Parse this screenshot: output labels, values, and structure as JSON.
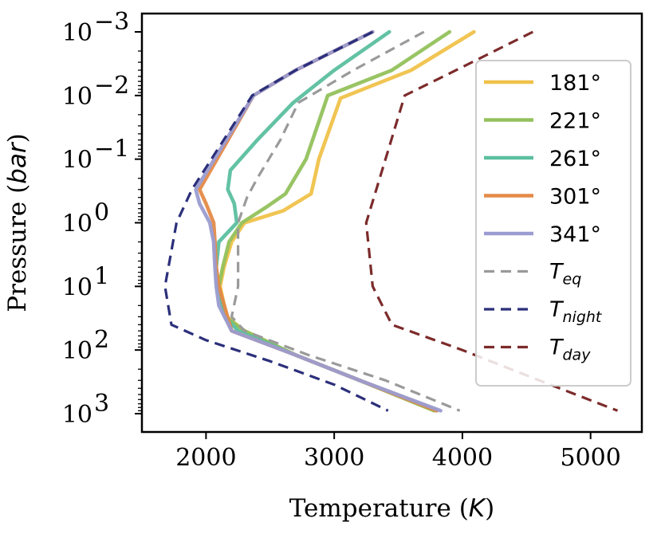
{
  "chart_data": {
    "type": "line",
    "title": "",
    "xlabel": "Temperature",
    "xlabel_unit": "K",
    "ylabel": "Pressure",
    "ylabel_unit": "bar",
    "xlim": [
      1500,
      5400
    ],
    "ylim": [
      0.001,
      1000.0
    ],
    "yscale": "log",
    "y_inverted": true,
    "grid": false,
    "legend_position": "right",
    "x_ticks": [
      {
        "value": 2000,
        "label": "2000"
      },
      {
        "value": 3000,
        "label": "3000"
      },
      {
        "value": 4000,
        "label": "4000"
      },
      {
        "value": 5000,
        "label": "5000"
      }
    ],
    "y_ticks": [
      {
        "value": 0.001,
        "base": "10",
        "exp": "−3"
      },
      {
        "value": 0.01,
        "base": "10",
        "exp": "−2"
      },
      {
        "value": 0.1,
        "base": "10",
        "exp": "−1"
      },
      {
        "value": 1,
        "base": "10",
        "exp": "0"
      },
      {
        "value": 10,
        "base": "10",
        "exp": "1"
      },
      {
        "value": 100,
        "base": "10",
        "exp": "2"
      },
      {
        "value": 1000,
        "base": "10",
        "exp": "3"
      }
    ],
    "series": [
      {
        "name": "181°",
        "label_main": "181°",
        "color": "#f0c24a",
        "style": "solid",
        "x": [
          4090,
          3600,
          3050,
          2880,
          2820,
          2600,
          2300,
          2200,
          2140,
          2110,
          2160,
          2300,
          2700,
          3200,
          3780
        ],
        "y": [
          0.001,
          0.004,
          0.011,
          0.1,
          0.35,
          0.65,
          1.0,
          2.0,
          5.0,
          10.0,
          30.0,
          50.0,
          120.0,
          300.0,
          900.0
        ]
      },
      {
        "name": "221°",
        "label_main": "221°",
        "color": "#94c15c",
        "style": "solid",
        "x": [
          3900,
          3450,
          2950,
          2780,
          2620,
          2480,
          2280,
          2180,
          2130,
          2100,
          2150,
          2300,
          2700,
          3200,
          3780
        ],
        "y": [
          0.001,
          0.004,
          0.01,
          0.1,
          0.35,
          0.55,
          1.0,
          2.0,
          5.0,
          10.0,
          30.0,
          50.0,
          120.0,
          300.0,
          900.0
        ]
      },
      {
        "name": "261°",
        "label_main": "261°",
        "color": "#5bbf9f",
        "style": "solid",
        "x": [
          3430,
          3000,
          2680,
          2400,
          2190,
          2170,
          2220,
          2240,
          2100,
          2080,
          2090,
          2150,
          2250,
          2700,
          3200,
          3800
        ],
        "y": [
          0.001,
          0.004,
          0.013,
          0.05,
          0.15,
          0.3,
          0.5,
          1.0,
          2.0,
          5.0,
          10.0,
          30.0,
          50.0,
          120.0,
          300.0,
          900.0
        ]
      },
      {
        "name": "301°",
        "label_main": "301°",
        "color": "#e48a48",
        "style": "solid",
        "x": [
          3300,
          2700,
          2370,
          1950,
          2000,
          2060,
          2070,
          2080,
          2100,
          2200,
          2700,
          3200,
          3800
        ],
        "y": [
          0.001,
          0.004,
          0.01,
          0.3,
          0.5,
          1.0,
          2.0,
          5.0,
          10.0,
          50.0,
          120.0,
          300.0,
          900.0
        ]
      },
      {
        "name": "341°",
        "label_main": "341°",
        "color": "#9b9cd0",
        "style": "solid",
        "x": [
          3300,
          2700,
          2370,
          1920,
          1950,
          2030,
          2060,
          2070,
          2080,
          2100,
          2200,
          2700,
          3200,
          3830
        ],
        "y": [
          0.001,
          0.004,
          0.01,
          0.3,
          0.5,
          1.0,
          2.0,
          5.0,
          10.0,
          20.0,
          50.0,
          120.0,
          300.0,
          900.0
        ]
      },
      {
        "name": "T_eq",
        "label_main": "T",
        "label_sub": "eq",
        "color": "#9a9a9a",
        "style": "dashed",
        "x": [
          3700,
          3150,
          2720,
          2580,
          2400,
          2320,
          2250,
          2250,
          2200,
          2300,
          2800,
          3400,
          3980
        ],
        "y": [
          0.001,
          0.004,
          0.013,
          0.05,
          0.2,
          0.4,
          1.0,
          10.0,
          30.0,
          50.0,
          120.0,
          300.0,
          900.0
        ]
      },
      {
        "name": "T_night",
        "label_main": "T",
        "label_sub": "night",
        "color": "#2b2f7a",
        "style": "dashed",
        "x": [
          3300,
          2700,
          2360,
          1890,
          1770,
          1680,
          1730,
          2000,
          2500,
          3000,
          3420
        ],
        "y": [
          0.001,
          0.004,
          0.01,
          0.3,
          1.0,
          10.0,
          40.0,
          70.0,
          150.0,
          350.0,
          900.0
        ]
      },
      {
        "name": "T_day",
        "label_main": "T",
        "label_sub": "day",
        "color": "#7c2b2b",
        "style": "dashed",
        "x": [
          4550,
          3950,
          3550,
          3400,
          3250,
          3300,
          3450,
          4000,
          4600,
          5210
        ],
        "y": [
          0.001,
          0.004,
          0.01,
          0.1,
          1.0,
          10.0,
          40.0,
          100.0,
          300.0,
          900.0
        ]
      }
    ]
  }
}
